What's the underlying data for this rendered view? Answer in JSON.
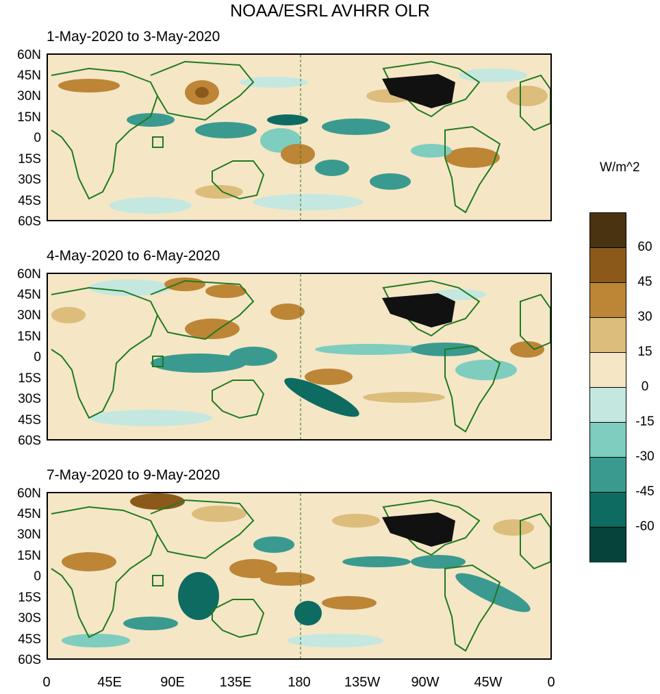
{
  "title": "NOAA/ESRL AVHRR OLR",
  "panels": [
    {
      "title": "1-May-2020 to 3-May-2020"
    },
    {
      "title": "4-May-2020 to 6-May-2020"
    },
    {
      "title": "7-May-2020 to 9-May-2020"
    }
  ],
  "lat_labels": [
    "60N",
    "45N",
    "30N",
    "15N",
    "0",
    "15S",
    "30S",
    "45S",
    "60S"
  ],
  "lon_labels": [
    "0",
    "45E",
    "90E",
    "135E",
    "180",
    "135W",
    "90W",
    "45W",
    "0"
  ],
  "colorbar": {
    "title": "W/m^2",
    "labels": [
      "60",
      "45",
      "30",
      "15",
      "0",
      "-15",
      "-30",
      "-45",
      "-60"
    ],
    "colors": [
      "#4a3310",
      "#8b5a1b",
      "#bd8536",
      "#dcbd7c",
      "#f5e6c6",
      "#c4e8e0",
      "#7ecdbf",
      "#3a9a8f",
      "#0e6b62",
      "#05433b"
    ]
  },
  "colors": {
    "land_outline": "#1e7a1e",
    "anomaly_neutral": "#f5e6c6"
  }
}
